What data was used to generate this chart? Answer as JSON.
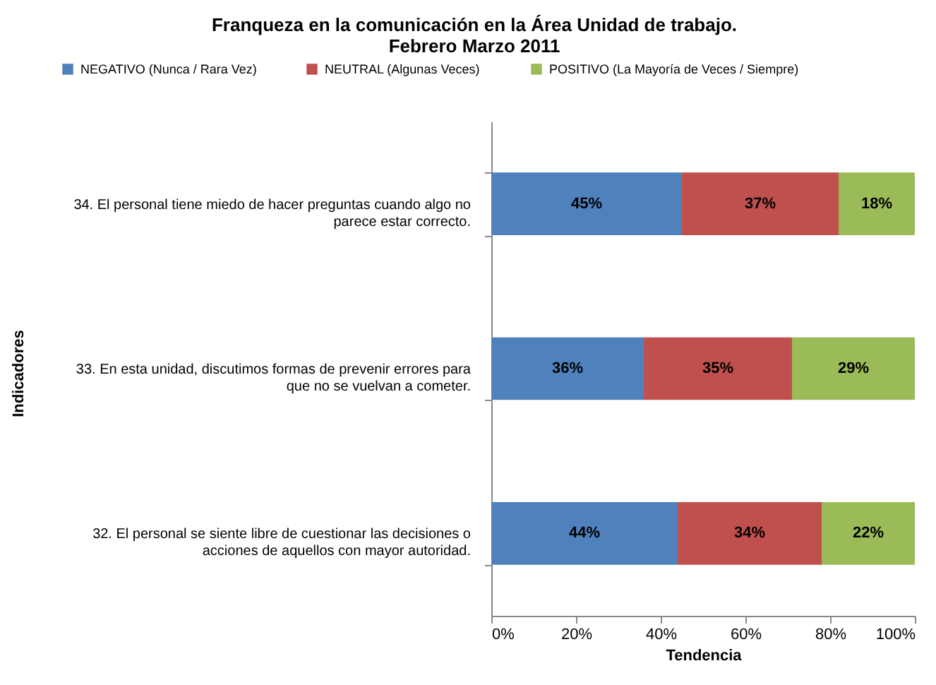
{
  "chart_data": {
    "type": "bar",
    "orientation": "horizontal",
    "stacked": true,
    "title": [
      "Franqueza en la comunicación en la Área Unidad de trabajo.",
      "Febrero Marzo 2011"
    ],
    "xlabel": "Tendencia",
    "ylabel": "Indicadores",
    "categories": [
      "34. El personal tiene miedo de hacer preguntas cuando algo no parece estar correcto.",
      "33. En esta unidad, discutimos formas de prevenir errores para que no se vuelvan a cometer.",
      "32. El personal se siente libre de cuestionar las decisiones o acciones de aquellos con mayor autoridad."
    ],
    "series": [
      {
        "name": "NEGATIVO (Nunca / Rara Vez)",
        "color": "#4f81bd",
        "values": [
          45,
          36,
          44
        ],
        "value_labels": [
          "45%",
          "36%",
          "44%"
        ]
      },
      {
        "name": "NEUTRAL (Algunas Veces)",
        "color": "#c0504d",
        "values": [
          37,
          35,
          34
        ],
        "value_labels": [
          "37%",
          "35%",
          "34%"
        ]
      },
      {
        "name": "POSITIVO (La Mayoría de Veces / Siempre)",
        "color": "#9bbb59",
        "values": [
          18,
          29,
          22
        ],
        "value_labels": [
          "18%",
          "29%",
          "22%"
        ]
      }
    ],
    "xlim": [
      0,
      100
    ],
    "xticks": [
      {
        "value": 0,
        "label": "0%"
      },
      {
        "value": 20,
        "label": "20%"
      },
      {
        "value": 40,
        "label": "40%"
      },
      {
        "value": 60,
        "label": "60%"
      },
      {
        "value": 80,
        "label": "80%"
      },
      {
        "value": 100,
        "label": "100%"
      }
    ],
    "legend": "top",
    "grid": false
  }
}
